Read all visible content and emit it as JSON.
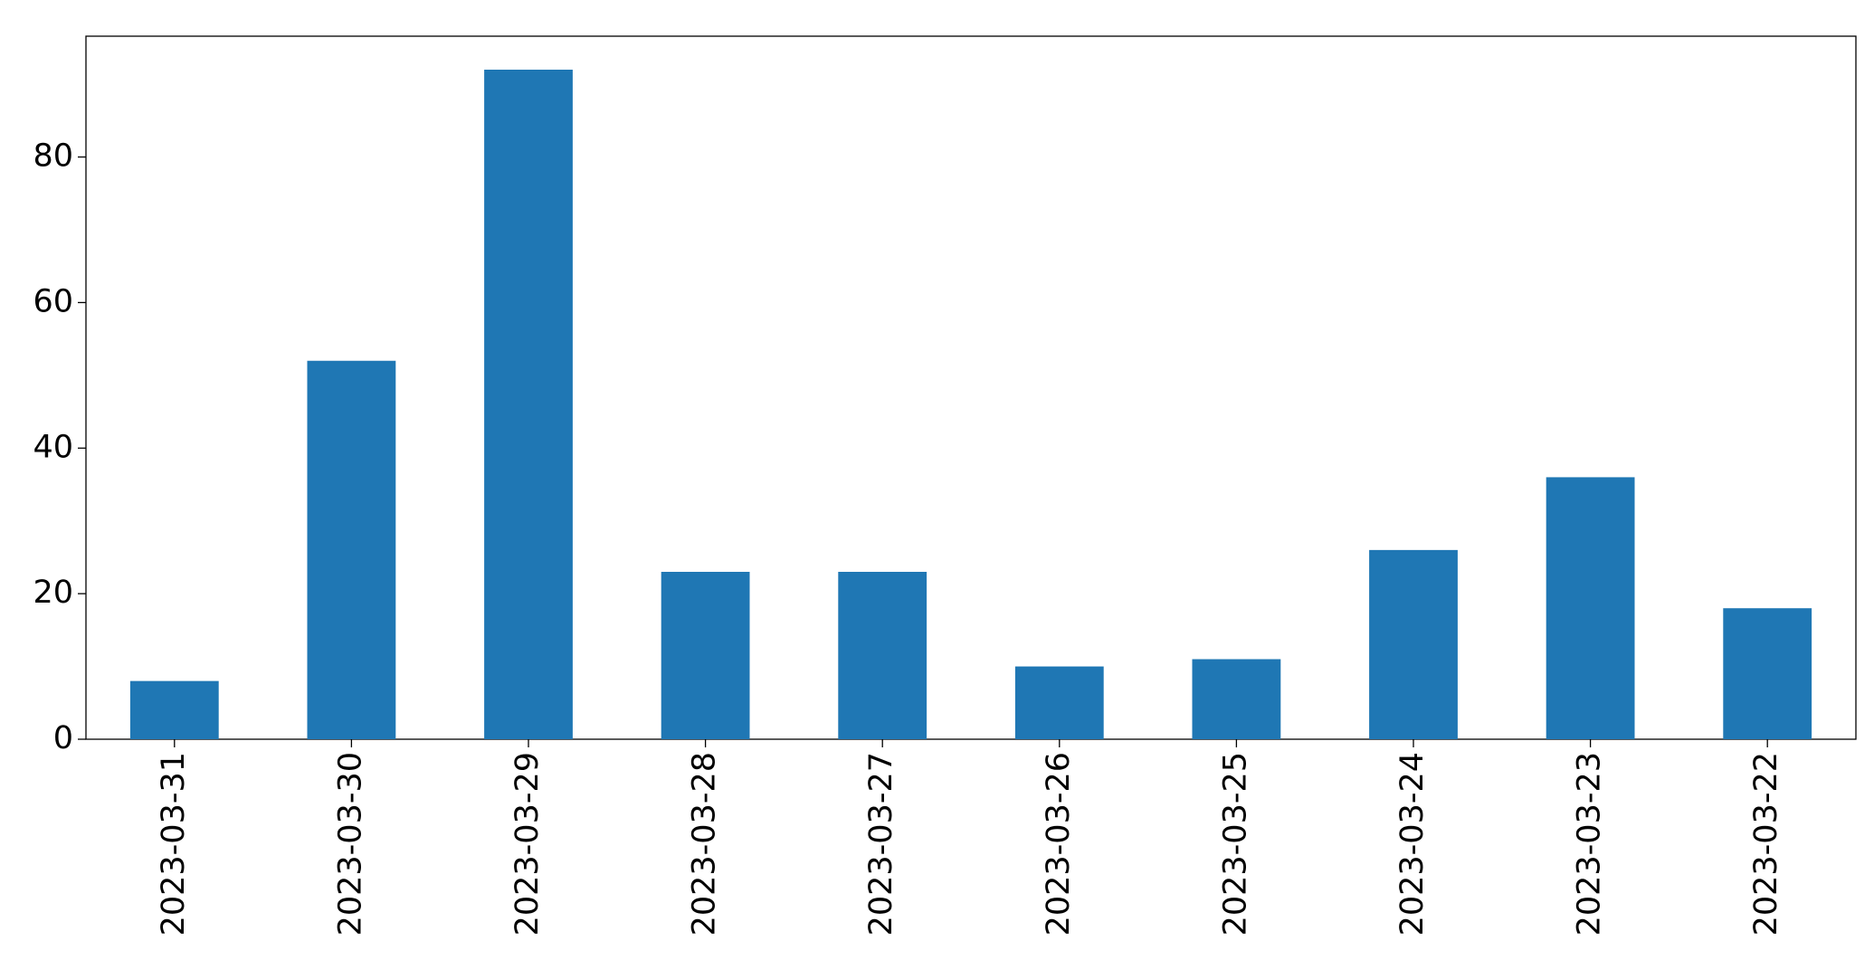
{
  "chart_data": {
    "type": "bar",
    "categories": [
      "2023-03-31",
      "2023-03-30",
      "2023-03-29",
      "2023-03-28",
      "2023-03-27",
      "2023-03-26",
      "2023-03-25",
      "2023-03-24",
      "2023-03-23",
      "2023-03-22"
    ],
    "values": [
      8,
      52,
      92,
      23,
      23,
      10,
      11,
      26,
      36,
      18
    ],
    "color": "#1f77b4",
    "ylim": [
      0,
      96.6
    ],
    "yticks": [
      0,
      20,
      40,
      60,
      80
    ],
    "grid": false
  }
}
